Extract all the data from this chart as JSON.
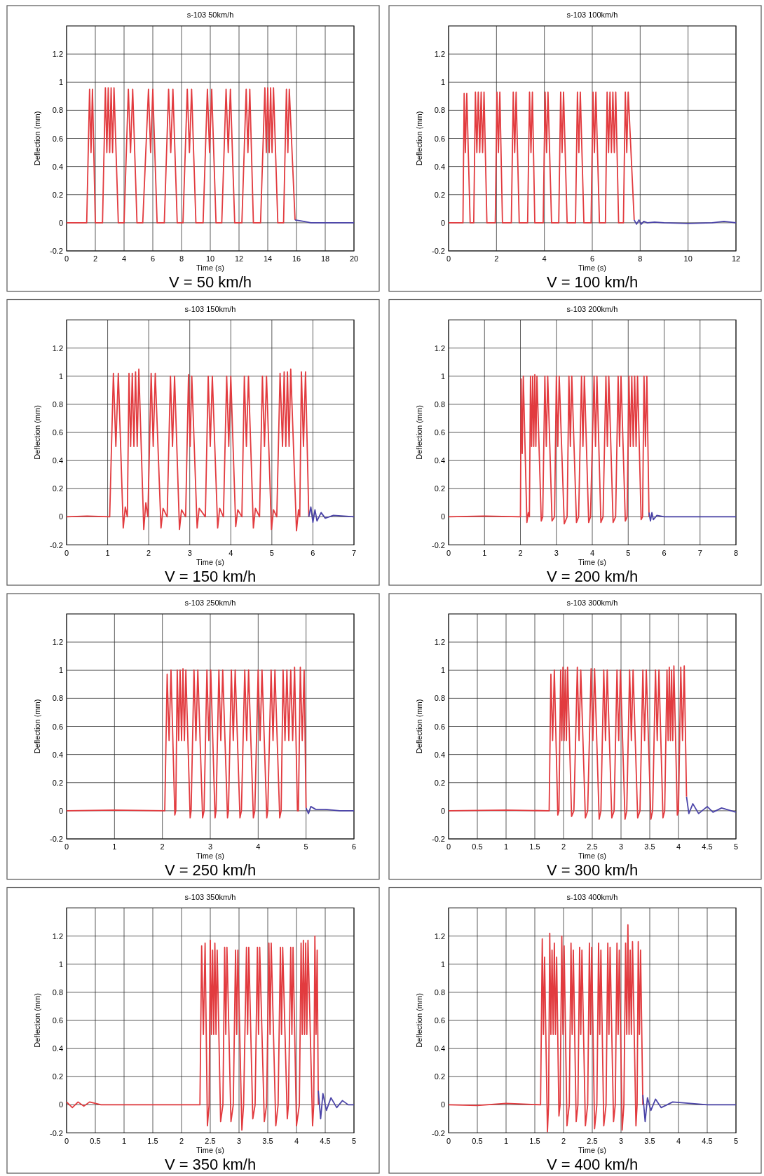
{
  "chart_data": [
    {
      "type": "line",
      "title": "s-103 50km/h",
      "xlabel": "Time (s)",
      "ylabel": "Deflection (mm)",
      "annotations": [
        "V = 50 km/h"
      ],
      "grid": true,
      "xlim": [
        0,
        20
      ],
      "xticks": [
        0,
        2,
        4,
        6,
        8,
        10,
        12,
        14,
        16,
        18,
        20
      ],
      "ylim": [
        -0.2,
        1.4
      ],
      "yticks": [
        -0.2,
        0,
        0.2,
        0.4,
        0.6,
        0.8,
        1,
        1.2
      ],
      "series": [
        {
          "color": "#e23b3f",
          "x": [
            0,
            1.4,
            1.6,
            1.7,
            1.8,
            2.0,
            2.5,
            2.7,
            2.8,
            2.9,
            3.0,
            3.1,
            3.2,
            3.3,
            3.6,
            4.0,
            4.3,
            4.45,
            4.6,
            4.9,
            5.3,
            5.7,
            5.85,
            6.0,
            6.3,
            6.8,
            7.1,
            7.25,
            7.4,
            7.7,
            8.1,
            8.4,
            8.55,
            8.7,
            9.0,
            9.5,
            9.8,
            9.95,
            10.1,
            10.4,
            10.8,
            11.1,
            11.25,
            11.4,
            11.7,
            12.2,
            12.5,
            12.62,
            12.75,
            13.0,
            13.5,
            13.8,
            13.9,
            14.0,
            14.1,
            14.2,
            14.3,
            14.4,
            14.7,
            15.1,
            15.3,
            15.4,
            15.5,
            15.9
          ],
          "values": [
            0,
            0,
            0.95,
            0.5,
            0.95,
            0,
            0,
            0.96,
            0.5,
            0.96,
            0.5,
            0.96,
            0.5,
            0.96,
            0,
            0,
            0.95,
            0.5,
            0.95,
            0,
            0,
            0.95,
            0.5,
            0.95,
            0,
            0,
            0.95,
            0.5,
            0.95,
            0,
            0,
            0.95,
            0.5,
            0.95,
            0,
            0,
            0.95,
            0.5,
            0.95,
            0,
            0,
            0.95,
            0.5,
            0.95,
            0,
            0,
            0.95,
            0.5,
            0.95,
            0,
            0,
            0.96,
            0.5,
            0.96,
            0.5,
            0.96,
            0.5,
            0.96,
            0,
            0,
            0.95,
            0.5,
            0.95,
            0.02
          ]
        },
        {
          "color": "#4b44a8",
          "x": [
            15.9,
            16.5,
            17,
            18,
            19,
            20
          ],
          "values": [
            0.02,
            0.01,
            0,
            0,
            0,
            0
          ]
        }
      ]
    },
    {
      "type": "line",
      "title": "s-103 100km/h",
      "xlabel": "Time (s)",
      "ylabel": "Deflection (mm)",
      "annotations": [
        "V = 100 km/h"
      ],
      "grid": true,
      "xlim": [
        0,
        12
      ],
      "xticks": [
        0,
        2,
        4,
        6,
        8,
        10,
        12
      ],
      "ylim": [
        -0.2,
        1.4
      ],
      "yticks": [
        -0.2,
        0,
        0.2,
        0.4,
        0.6,
        0.8,
        1,
        1.2
      ],
      "series": [
        {
          "color": "#e23b3f",
          "x": [
            0,
            0.55,
            0.6,
            0.65,
            0.7,
            0.76,
            0.9,
            1.05,
            1.12,
            1.18,
            1.24,
            1.3,
            1.36,
            1.42,
            1.48,
            1.6,
            1.95,
            2.02,
            2.08,
            2.14,
            2.25,
            2.62,
            2.7,
            2.76,
            2.82,
            2.95,
            3.3,
            3.38,
            3.44,
            3.5,
            3.6,
            3.95,
            4.03,
            4.09,
            4.15,
            4.3,
            4.6,
            4.68,
            4.74,
            4.8,
            4.95,
            5.3,
            5.38,
            5.44,
            5.5,
            5.65,
            5.95,
            6.03,
            6.09,
            6.15,
            6.3,
            6.55,
            6.62,
            6.68,
            6.74,
            6.8,
            6.86,
            6.92,
            6.98,
            7.1,
            7.3,
            7.38,
            7.44,
            7.5,
            7.75
          ],
          "values": [
            0,
            0,
            0,
            0.92,
            0.5,
            0.92,
            0,
            0,
            0.93,
            0.5,
            0.93,
            0.5,
            0.93,
            0.5,
            0.93,
            0,
            0,
            0.93,
            0.5,
            0.93,
            0,
            0,
            0.93,
            0.5,
            0.93,
            0,
            0,
            0.93,
            0.5,
            0.93,
            0,
            0,
            0.93,
            0.5,
            0.93,
            0,
            0,
            0.93,
            0.5,
            0.93,
            0,
            0,
            0.93,
            0.5,
            0.93,
            0,
            0,
            0.93,
            0.5,
            0.93,
            0,
            0,
            0.93,
            0.5,
            0.93,
            0.5,
            0.93,
            0.5,
            0.93,
            0,
            0,
            0.93,
            0.5,
            0.93,
            0.02
          ]
        },
        {
          "color": "#4b44a8",
          "x": [
            7.75,
            7.85,
            7.95,
            8.05,
            8.15,
            8.3,
            8.6,
            9,
            10,
            11,
            11.5,
            12
          ],
          "values": [
            0.02,
            -0.01,
            0.02,
            -0.01,
            0.01,
            0,
            0.005,
            0,
            -0.005,
            0,
            0.01,
            0
          ]
        }
      ]
    },
    {
      "type": "line",
      "title": "s-103 150km/h",
      "xlabel": "Time (s)",
      "ylabel": "Deflection (mm)",
      "annotations": [
        "V = 150 km/h"
      ],
      "grid": true,
      "xlim": [
        0,
        7
      ],
      "xticks": [
        0,
        1,
        2,
        3,
        4,
        5,
        6,
        7
      ],
      "ylim": [
        -0.2,
        1.4
      ],
      "yticks": [
        -0.2,
        0,
        0.2,
        0.4,
        0.6,
        0.8,
        1,
        1.2
      ],
      "series": [
        {
          "color": "#e23b3f",
          "x": [
            0,
            0.5,
            1.05,
            1.14,
            1.2,
            1.26,
            1.38,
            1.43,
            1.48,
            1.52,
            1.56,
            1.6,
            1.64,
            1.68,
            1.72,
            1.76,
            1.88,
            1.93,
            1.98,
            2.06,
            2.11,
            2.16,
            2.3,
            2.35,
            2.45,
            2.53,
            2.58,
            2.63,
            2.75,
            2.8,
            2.9,
            2.97,
            3.01,
            3.05,
            3.18,
            3.23,
            3.38,
            3.45,
            3.5,
            3.55,
            3.68,
            3.73,
            3.82,
            3.9,
            3.95,
            4.0,
            4.12,
            4.17,
            4.27,
            4.33,
            4.38,
            4.43,
            4.55,
            4.6,
            4.7,
            4.77,
            4.82,
            4.87,
            4.99,
            5.04,
            5.12,
            5.2,
            5.26,
            5.3,
            5.34,
            5.38,
            5.42,
            5.46,
            5.6,
            5.65,
            5.68,
            5.72,
            5.77,
            5.82,
            5.9
          ],
          "values": [
            0,
            0.005,
            0,
            1.02,
            0.5,
            1.02,
            -0.08,
            0.07,
            0,
            1.02,
            0.5,
            1.02,
            0.5,
            1.03,
            0.5,
            1.05,
            -0.09,
            0.1,
            0,
            1.02,
            0.5,
            1.02,
            -0.08,
            0.06,
            0,
            1.0,
            0.5,
            1.0,
            -0.09,
            0.05,
            0,
            1.01,
            0.5,
            1.0,
            -0.08,
            0.06,
            0,
            1.0,
            0.5,
            1.0,
            -0.08,
            0.06,
            0,
            1.0,
            0.5,
            1.0,
            -0.07,
            0.05,
            0,
            1.0,
            0.5,
            1.0,
            -0.08,
            0.06,
            0,
            1.0,
            0.5,
            1.0,
            -0.09,
            0.05,
            0,
            1.02,
            0.5,
            1.03,
            0.5,
            1.03,
            0.5,
            1.05,
            -0.1,
            0.05,
            0,
            1.03,
            0.5,
            1.03,
            0
          ]
        },
        {
          "color": "#4b44a8",
          "x": [
            5.9,
            5.95,
            6.0,
            6.05,
            6.1,
            6.2,
            6.3,
            6.5,
            7
          ],
          "values": [
            0,
            0.07,
            -0.04,
            0.05,
            -0.03,
            0.03,
            -0.01,
            0.01,
            0
          ]
        }
      ]
    },
    {
      "type": "line",
      "title": "s-103 200km/h",
      "xlabel": "Time (s)",
      "ylabel": "Deflection (mm)",
      "annotations": [
        "V = 200 km/h"
      ],
      "grid": true,
      "xlim": [
        0,
        8
      ],
      "xticks": [
        0,
        1,
        2,
        3,
        4,
        5,
        6,
        7,
        8
      ],
      "ylim": [
        -0.2,
        1.4
      ],
      "yticks": [
        -0.2,
        0,
        0.2,
        0.4,
        0.6,
        0.8,
        1,
        1.2
      ],
      "series": [
        {
          "color": "#e23b3f",
          "x": [
            0,
            1,
            2.0,
            2.02,
            2.05,
            2.08,
            2.18,
            2.22,
            2.25,
            2.28,
            2.31,
            2.34,
            2.37,
            2.4,
            2.43,
            2.46,
            2.58,
            2.62,
            2.68,
            2.72,
            2.76,
            2.88,
            2.95,
            3.0,
            3.04,
            3.08,
            3.22,
            3.3,
            3.35,
            3.39,
            3.43,
            3.56,
            3.62,
            3.7,
            3.74,
            3.78,
            3.9,
            3.95,
            4.05,
            4.09,
            4.13,
            4.24,
            4.3,
            4.38,
            4.42,
            4.46,
            4.58,
            4.65,
            4.72,
            4.76,
            4.8,
            4.92,
            4.97,
            5.02,
            5.06,
            5.1,
            5.14,
            5.18,
            5.22,
            5.26,
            5.36,
            5.4,
            5.44,
            5.48,
            5.52,
            5.58
          ],
          "values": [
            0,
            0.005,
            0,
            0.98,
            0.45,
            1.0,
            -0.04,
            0.03,
            0,
            1.0,
            0.5,
            1.0,
            0.5,
            1.01,
            0.5,
            1.0,
            -0.03,
            0,
            1.0,
            0.5,
            1.0,
            -0.03,
            0,
            1.0,
            0.5,
            1.0,
            -0.05,
            0,
            1.0,
            0.5,
            1.0,
            -0.04,
            0,
            1.0,
            0.5,
            1.0,
            -0.04,
            0,
            1.0,
            0.5,
            1.0,
            -0.04,
            0,
            1.0,
            0.5,
            1.0,
            -0.04,
            0,
            1.0,
            0.5,
            1.0,
            -0.03,
            0,
            1.0,
            0.5,
            1.0,
            0.5,
            1.0,
            0.5,
            1.0,
            -0.02,
            0,
            1.0,
            0.5,
            1.0,
            0
          ]
        },
        {
          "color": "#4b44a8",
          "x": [
            5.58,
            5.62,
            5.66,
            5.7,
            5.8,
            6,
            7,
            8
          ],
          "values": [
            0.03,
            -0.03,
            0.03,
            -0.02,
            0.01,
            0,
            0,
            0
          ]
        }
      ]
    },
    {
      "type": "line",
      "title": "s-103 250km/h",
      "xlabel": "Time (s)",
      "ylabel": "Deflection (mm)",
      "annotations": [
        "V = 250 km/h"
      ],
      "grid": true,
      "xlim": [
        0,
        6
      ],
      "xticks": [
        0,
        1,
        2,
        3,
        4,
        5,
        6
      ],
      "ylim": [
        -0.2,
        1.4
      ],
      "yticks": [
        -0.2,
        0,
        0.2,
        0.4,
        0.6,
        0.8,
        1,
        1.2
      ],
      "series": [
        {
          "color": "#e23b3f",
          "x": [
            0,
            1,
            2.05,
            2.1,
            2.14,
            2.18,
            2.26,
            2.28,
            2.31,
            2.34,
            2.37,
            2.4,
            2.43,
            2.46,
            2.49,
            2.58,
            2.6,
            2.66,
            2.7,
            2.74,
            2.84,
            2.87,
            2.93,
            2.97,
            3.01,
            3.1,
            3.12,
            3.18,
            3.22,
            3.26,
            3.36,
            3.38,
            3.44,
            3.48,
            3.52,
            3.62,
            3.65,
            3.72,
            3.76,
            3.8,
            3.9,
            3.93,
            4.0,
            4.04,
            4.08,
            4.18,
            4.2,
            4.27,
            4.31,
            4.35,
            4.45,
            4.48,
            4.52,
            4.56,
            4.6,
            4.64,
            4.68,
            4.72,
            4.76,
            4.82,
            4.84,
            4.88,
            4.92,
            4.96,
            5.0
          ],
          "values": [
            0,
            0.005,
            0,
            0.97,
            0.5,
            1.0,
            -0.03,
            0,
            1.0,
            0.5,
            1.0,
            0.5,
            1.01,
            0.5,
            1.0,
            -0.05,
            0,
            1.0,
            0.5,
            1.0,
            -0.05,
            0,
            1.0,
            0.5,
            1.0,
            -0.05,
            0,
            1.0,
            0.5,
            1.0,
            -0.05,
            0,
            1.0,
            0.5,
            1.0,
            -0.05,
            0,
            1.0,
            0.5,
            1.0,
            -0.05,
            0,
            1.0,
            0.5,
            1.0,
            -0.05,
            0,
            1.0,
            0.5,
            1.0,
            -0.05,
            0,
            1.0,
            0.5,
            1.0,
            0.5,
            1.0,
            0.5,
            1.02,
            0,
            0,
            1.02,
            0.5,
            1.0,
            0.02
          ]
        },
        {
          "color": "#4b44a8",
          "x": [
            5.0,
            5.05,
            5.1,
            5.2,
            5.4,
            5.7,
            6
          ],
          "values": [
            0.02,
            -0.02,
            0.03,
            0.01,
            0.01,
            0,
            0
          ]
        }
      ]
    },
    {
      "type": "line",
      "title": "s-103 300km/h",
      "xlabel": "Time (s)",
      "ylabel": "Deflection (mm)",
      "annotations": [
        "V = 300 km/h"
      ],
      "grid": true,
      "xlim": [
        0,
        5
      ],
      "xticks": [
        0,
        0.5,
        1,
        1.5,
        2,
        2.5,
        3,
        3.5,
        4,
        4.5,
        5
      ],
      "ylim": [
        -0.2,
        1.4
      ],
      "yticks": [
        -0.2,
        0,
        0.2,
        0.4,
        0.6,
        0.8,
        1,
        1.2
      ],
      "series": [
        {
          "color": "#e23b3f",
          "x": [
            0,
            1,
            1.75,
            1.78,
            1.81,
            1.84,
            1.9,
            1.92,
            1.95,
            1.97,
            1.99,
            2.01,
            2.03,
            2.05,
            2.07,
            2.14,
            2.18,
            2.24,
            2.27,
            2.3,
            2.38,
            2.42,
            2.48,
            2.51,
            2.54,
            2.62,
            2.65,
            2.7,
            2.73,
            2.76,
            2.84,
            2.88,
            2.93,
            2.96,
            2.99,
            3.07,
            3.1,
            3.15,
            3.18,
            3.21,
            3.29,
            3.33,
            3.38,
            3.41,
            3.44,
            3.52,
            3.55,
            3.6,
            3.63,
            3.66,
            3.73,
            3.76,
            3.8,
            3.82,
            3.84,
            3.86,
            3.88,
            3.9,
            3.92,
            3.98,
            4.0,
            4.04,
            4.07,
            4.1,
            4.14
          ],
          "values": [
            0,
            0.005,
            0,
            0.97,
            0.5,
            1.0,
            -0.03,
            0,
            1.0,
            0.5,
            1.02,
            0.5,
            1.0,
            0.5,
            1.02,
            -0.04,
            0,
            1.02,
            0.5,
            1.0,
            -0.05,
            0,
            1.01,
            0.5,
            1.01,
            -0.06,
            0,
            1.0,
            0.5,
            1.0,
            -0.05,
            0,
            1.0,
            0.5,
            1.0,
            -0.06,
            0,
            1.0,
            0.5,
            1.0,
            -0.05,
            0,
            1.0,
            0.5,
            1.0,
            -0.06,
            0,
            1.0,
            0.5,
            1.0,
            -0.05,
            0,
            1.0,
            0.5,
            1.02,
            0.5,
            1.0,
            0.5,
            1.03,
            -0.03,
            0,
            1.02,
            0.5,
            1.03,
            0.1
          ]
        },
        {
          "color": "#4b44a8",
          "x": [
            4.14,
            4.18,
            4.25,
            4.35,
            4.5,
            4.6,
            4.75,
            5
          ],
          "values": [
            0.1,
            -0.02,
            0.05,
            -0.02,
            0.03,
            -0.01,
            0.02,
            -0.01
          ]
        }
      ]
    },
    {
      "type": "line",
      "title": "s-103 350km/h",
      "xlabel": "Time (s)",
      "ylabel": "Deflection (mm)",
      "annotations": [
        "V = 350 km/h"
      ],
      "grid": true,
      "xlim": [
        0,
        5
      ],
      "xticks": [
        0,
        0.5,
        1,
        1.5,
        2,
        2.5,
        3,
        3.5,
        4,
        4.5,
        5
      ],
      "ylim": [
        -0.2,
        1.4
      ],
      "yticks": [
        -0.2,
        0,
        0.2,
        0.4,
        0.6,
        0.8,
        1,
        1.2
      ],
      "series": [
        {
          "color": "#e23b3f",
          "x": [
            0,
            0.1,
            0.2,
            0.3,
            0.4,
            0.6,
            1,
            2.32,
            2.35,
            2.38,
            2.41,
            2.45,
            2.48,
            2.5,
            2.52,
            2.54,
            2.56,
            2.58,
            2.6,
            2.62,
            2.68,
            2.72,
            2.75,
            2.77,
            2.79,
            2.86,
            2.9,
            2.94,
            2.96,
            2.98,
            3.05,
            3.08,
            3.13,
            3.15,
            3.17,
            3.24,
            3.28,
            3.32,
            3.34,
            3.36,
            3.44,
            3.48,
            3.52,
            3.54,
            3.56,
            3.64,
            3.68,
            3.72,
            3.74,
            3.76,
            3.84,
            3.86,
            3.9,
            3.92,
            3.94,
            4.0,
            4.05,
            4.08,
            4.1,
            4.12,
            4.14,
            4.16,
            4.18,
            4.2,
            4.28,
            4.3,
            4.32,
            4.34,
            4.36,
            4.38
          ],
          "values": [
            0.02,
            -0.02,
            0.02,
            -0.01,
            0.02,
            0,
            0,
            0,
            1.13,
            0.5,
            1.15,
            -0.15,
            0,
            1.17,
            0.5,
            1.1,
            0.5,
            1.15,
            0.5,
            1.1,
            -0.12,
            0,
            1.12,
            0.5,
            1.12,
            -0.12,
            0,
            1.1,
            0.5,
            1.1,
            -0.18,
            0,
            1.12,
            0.5,
            1.12,
            -0.1,
            0,
            1.12,
            0.5,
            1.12,
            -0.12,
            0,
            1.15,
            0.5,
            1.15,
            -0.15,
            0,
            1.12,
            0.5,
            1.12,
            -0.1,
            0,
            1.12,
            0.5,
            1.12,
            -0.15,
            0,
            1.15,
            0.5,
            1.17,
            0.5,
            1.15,
            0.5,
            1.17,
            -0.15,
            0,
            1.2,
            0.5,
            1.1,
            0
          ]
        },
        {
          "color": "#4b44a8",
          "x": [
            4.38,
            4.42,
            4.46,
            4.52,
            4.6,
            4.7,
            4.8,
            4.9,
            5
          ],
          "values": [
            0.1,
            -0.1,
            0.08,
            -0.04,
            0.05,
            -0.02,
            0.03,
            0,
            0
          ]
        }
      ]
    },
    {
      "type": "line",
      "title": "s-103 400km/h",
      "xlabel": "Time (s)",
      "ylabel": "Deflection (mm)",
      "annotations": [
        "V = 400 km/h"
      ],
      "grid": true,
      "xlim": [
        0,
        5
      ],
      "xticks": [
        0,
        0.5,
        1,
        1.5,
        2,
        2.5,
        3,
        3.5,
        4,
        4.5,
        5
      ],
      "ylim": [
        -0.2,
        1.4
      ],
      "yticks": [
        -0.2,
        0,
        0.2,
        0.4,
        0.6,
        0.8,
        1,
        1.2
      ],
      "series": [
        {
          "color": "#e23b3f",
          "x": [
            0,
            0.5,
            1.0,
            1.6,
            1.63,
            1.65,
            1.67,
            1.72,
            1.74,
            1.76,
            1.78,
            1.8,
            1.82,
            1.84,
            1.86,
            1.88,
            1.92,
            1.94,
            1.97,
            1.99,
            2.01,
            2.06,
            2.1,
            2.13,
            2.15,
            2.17,
            2.22,
            2.25,
            2.28,
            2.3,
            2.32,
            2.38,
            2.42,
            2.45,
            2.47,
            2.49,
            2.54,
            2.58,
            2.61,
            2.63,
            2.65,
            2.7,
            2.74,
            2.77,
            2.79,
            2.81,
            2.87,
            2.9,
            2.93,
            2.95,
            2.97,
            3.02,
            3.05,
            3.08,
            3.1,
            3.12,
            3.14,
            3.16,
            3.18,
            3.2,
            3.26,
            3.28,
            3.3,
            3.32,
            3.34,
            3.38
          ],
          "values": [
            0,
            -0.005,
            0.01,
            0,
            1.18,
            0.5,
            1.05,
            -0.19,
            0,
            1.22,
            0.5,
            1.1,
            0.5,
            1.15,
            0.5,
            1.05,
            -0.08,
            0,
            1.2,
            0.5,
            1.13,
            -0.15,
            0,
            1.15,
            0.5,
            1.1,
            -0.12,
            0,
            1.12,
            0.5,
            1.1,
            -0.15,
            0,
            1.15,
            0.5,
            1.12,
            -0.17,
            0,
            1.15,
            0.5,
            1.1,
            -0.15,
            0,
            1.15,
            0.5,
            1.12,
            -0.12,
            0,
            1.15,
            0.5,
            1.1,
            -0.18,
            0,
            1.15,
            0.5,
            1.28,
            0.5,
            1.1,
            0.5,
            1.16,
            -0.15,
            0,
            1.16,
            0.5,
            1.1,
            0
          ]
        },
        {
          "color": "#4b44a8",
          "x": [
            3.38,
            3.42,
            3.46,
            3.52,
            3.6,
            3.7,
            3.9,
            4.2,
            4.5,
            5
          ],
          "values": [
            0.07,
            -0.12,
            0.05,
            -0.04,
            0.04,
            -0.02,
            0.02,
            0.01,
            0,
            0
          ]
        }
      ]
    }
  ]
}
